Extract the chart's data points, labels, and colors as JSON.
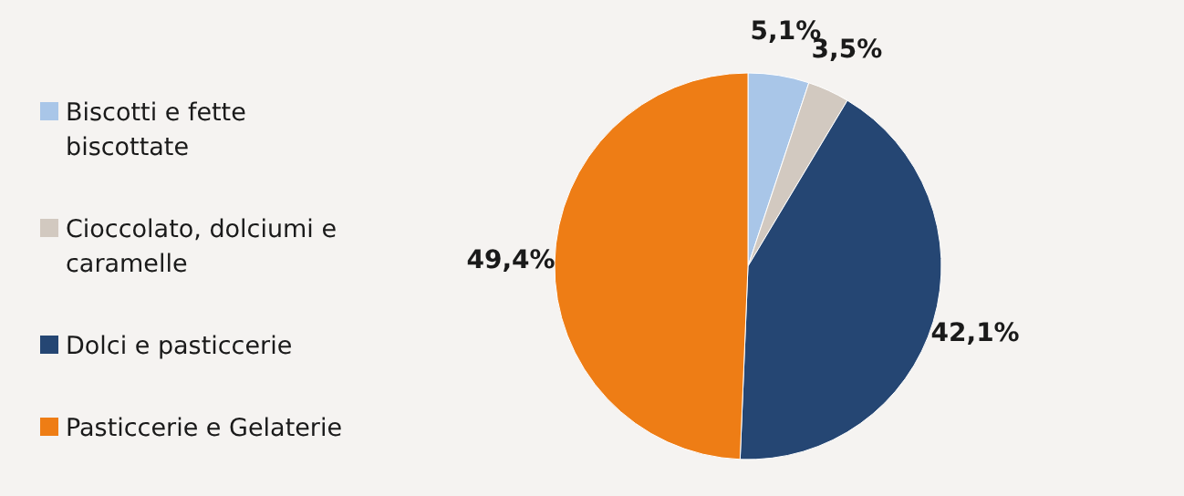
{
  "chart_data": {
    "type": "pie",
    "categories": [
      "Biscotti e fette biscottate",
      "Cioccolato, dolciumi e caramelle",
      "Dolci e pasticcerie",
      "Pasticcerie e Gelaterie"
    ],
    "values": [
      5.1,
      3.5,
      42.1,
      49.4
    ],
    "colors": [
      "#a9c6e8",
      "#d2c9c0",
      "#254673",
      "#ee7d15"
    ],
    "value_labels": [
      "5,1%",
      "3,5%",
      "42,1%",
      "49,4%"
    ],
    "legend": "left"
  }
}
